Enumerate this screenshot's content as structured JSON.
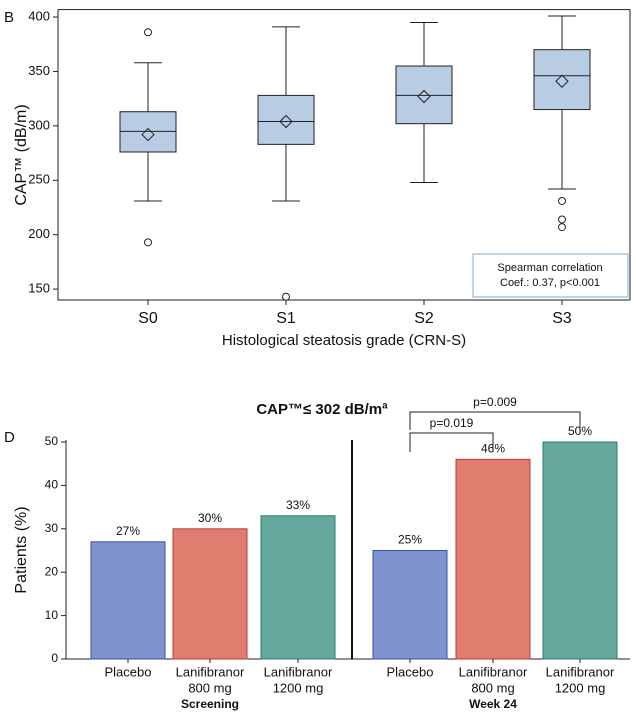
{
  "chart_data": [
    {
      "type": "box",
      "panel_label": "B",
      "ylabel": "CAP™ (dB/m)",
      "xlabel": "Histological steatosis grade (CRN-S)",
      "categories": [
        "S0",
        "S1",
        "S2",
        "S3"
      ],
      "boxes": [
        {
          "low": 231,
          "q1": 276,
          "median": 295,
          "q3": 313,
          "high": 358,
          "mean": 292,
          "outliers": [
            386,
            193
          ]
        },
        {
          "low": 231,
          "q1": 283,
          "median": 304,
          "q3": 328,
          "high": 391,
          "mean": 304,
          "outliers": [
            143
          ]
        },
        {
          "low": 248,
          "q1": 302,
          "median": 328,
          "q3": 355,
          "high": 395,
          "mean": 327,
          "outliers": []
        },
        {
          "low": 242,
          "q1": 315,
          "median": 346,
          "q3": 370,
          "high": 401,
          "mean": 341,
          "outliers": [
            231,
            214,
            207
          ]
        }
      ],
      "color": "#b8cce4",
      "ylim": [
        140,
        405
      ],
      "yticks": [
        150,
        200,
        250,
        300,
        350,
        400
      ],
      "annotation": [
        "Spearman correlation",
        "Coef.: 0.37, p<0.001"
      ]
    },
    {
      "type": "bar",
      "panel_label": "D",
      "title": "CAP™≤ 302 dB/mª",
      "ylabel": "Patients (%)",
      "groups": [
        {
          "name": "Screening",
          "categories": [
            [
              "Placebo"
            ],
            [
              "Lanifibranor",
              "800 mg"
            ],
            [
              "Lanifibranor",
              "1200 mg"
            ]
          ],
          "values": [
            27,
            30,
            33
          ],
          "value_labels": [
            "27%",
            "30%",
            "33%"
          ]
        },
        {
          "name": "Week 24",
          "categories": [
            [
              "Placebo"
            ],
            [
              "Lanifibranor",
              "800 mg"
            ],
            [
              "Lanifibranor",
              "1200 mg"
            ]
          ],
          "values": [
            25,
            46,
            50
          ],
          "value_labels": [
            "25%",
            "46%",
            "50%"
          ]
        }
      ],
      "colors": [
        "#7f93cf",
        "#e07d6e",
        "#64a89e"
      ],
      "edge_colors": [
        "#3a4fb5",
        "#c0393a",
        "#2e7d70"
      ],
      "comparisons": [
        {
          "label": "p=0.019"
        },
        {
          "label": "p=0.009"
        }
      ],
      "ylim": [
        0,
        50
      ],
      "yticks": [
        0,
        10,
        20,
        30,
        40,
        50
      ]
    }
  ]
}
